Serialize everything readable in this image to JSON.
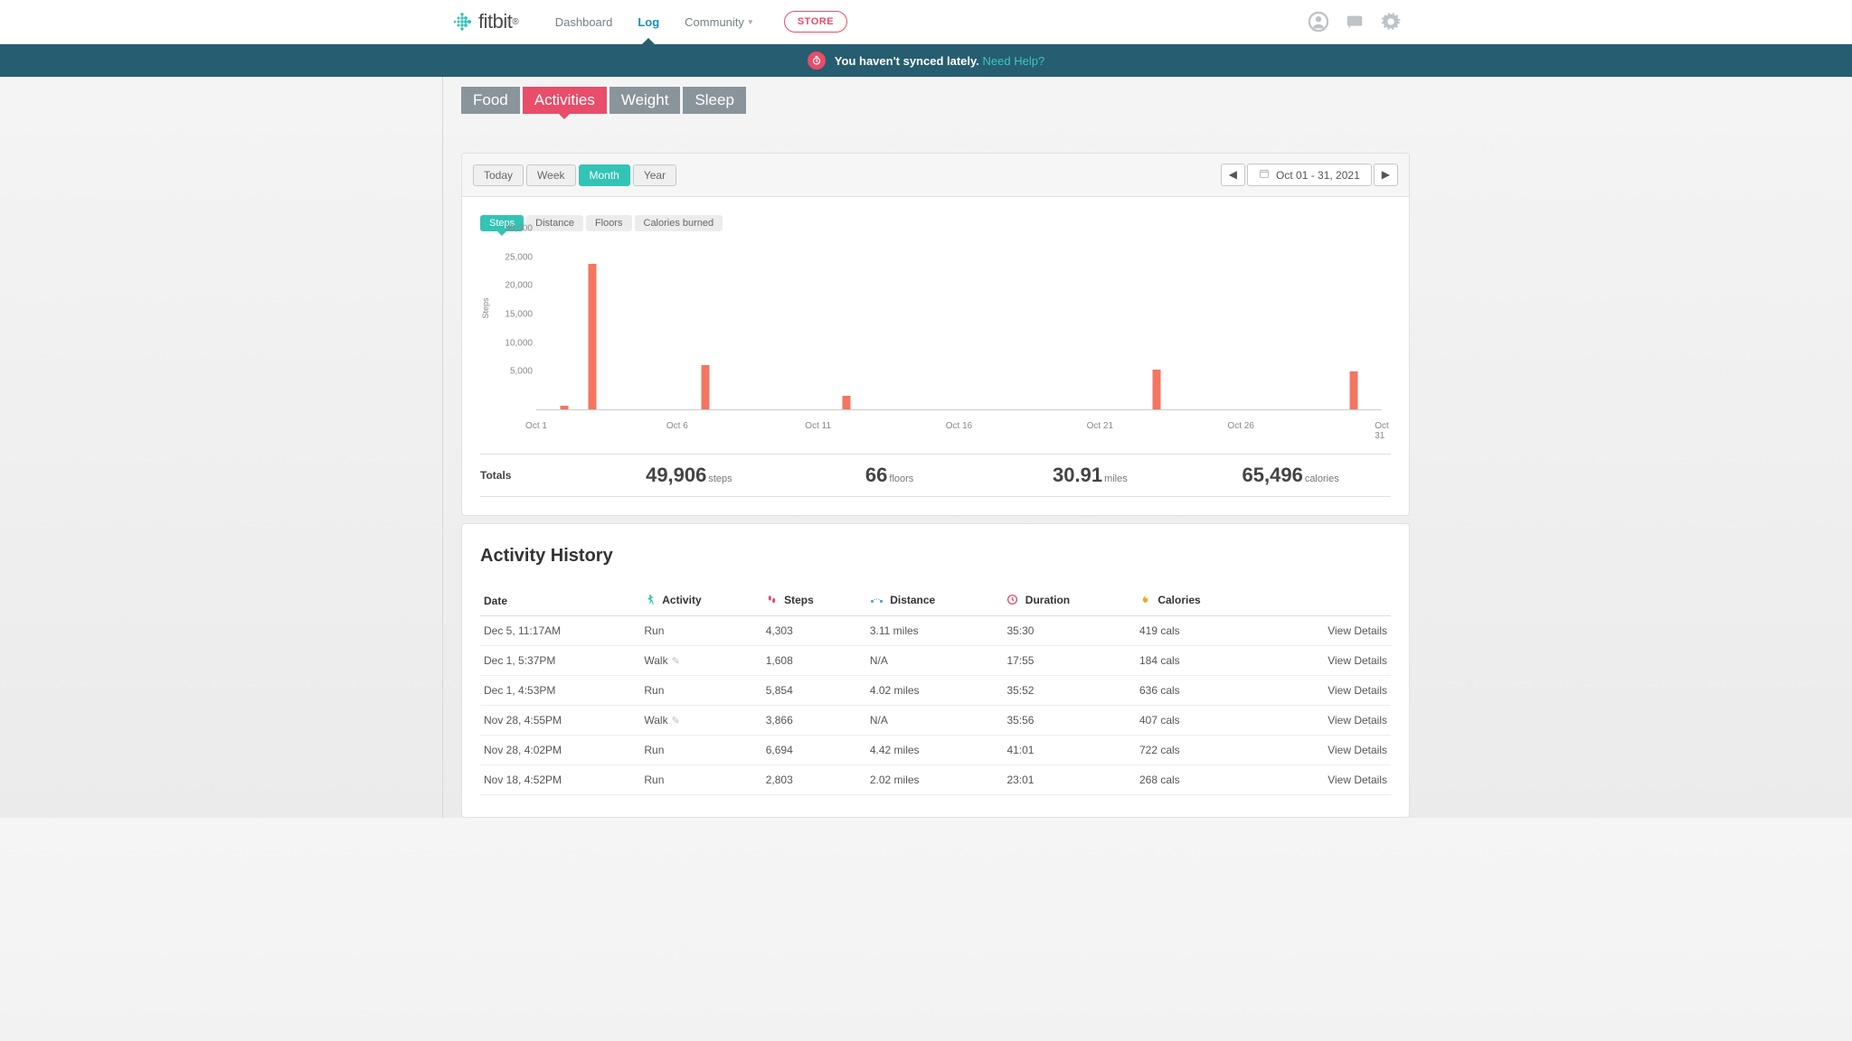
{
  "brand": "fitbit",
  "nav": {
    "dashboard": "Dashboard",
    "log": "Log",
    "community": "Community",
    "store": "STORE"
  },
  "sync": {
    "message": "You haven't synced lately.",
    "help": "Need Help?"
  },
  "subtabs": {
    "food": "Food",
    "activities": "Activities",
    "weight": "Weight",
    "sleep": "Sleep"
  },
  "range": {
    "today": "Today",
    "week": "Week",
    "month": "Month",
    "year": "Year",
    "date_display": "Oct 01 - 31, 2021"
  },
  "metrics": {
    "steps": "Steps",
    "distance": "Distance",
    "floors": "Floors",
    "calories": "Calories burned"
  },
  "chart": {
    "type": "bar",
    "y_axis_label": "Steps",
    "ylim": [
      0,
      30000
    ],
    "ytick_step": 5000,
    "y_ticks": [
      "5,000",
      "10,000",
      "15,000",
      "20,000",
      "25,000",
      "30,000"
    ],
    "bar_color": "#f47560",
    "grid_color": "#cccccc",
    "background_color": "#ffffff",
    "label_fontsize": 10,
    "label_color": "#888888",
    "x_categories": [
      "Oct 1",
      "Oct 6",
      "Oct 11",
      "Oct 16",
      "Oct 21",
      "Oct 26",
      "Oct 31"
    ],
    "bars": [
      {
        "day": 2,
        "value": 600
      },
      {
        "day": 3,
        "value": 25500
      },
      {
        "day": 7,
        "value": 7800
      },
      {
        "day": 12,
        "value": 2400
      },
      {
        "day": 23,
        "value": 6900
      },
      {
        "day": 30,
        "value": 6600
      }
    ]
  },
  "totals": {
    "label": "Totals",
    "steps_val": "49,906",
    "steps_unit": "steps",
    "floors_val": "66",
    "floors_unit": "floors",
    "distance_val": "30.91",
    "distance_unit": "miles",
    "calories_val": "65,496",
    "calories_unit": "calories"
  },
  "history": {
    "title": "Activity History",
    "columns": {
      "date": "Date",
      "activity": "Activity",
      "steps": "Steps",
      "distance": "Distance",
      "duration": "Duration",
      "calories": "Calories"
    },
    "view_label": "View Details",
    "rows": [
      {
        "date": "Dec 5, 11:17AM",
        "activity": "Run",
        "editable": false,
        "steps": "4,303",
        "distance": "3.11 miles",
        "duration": "35:30",
        "calories": "419 cals"
      },
      {
        "date": "Dec 1, 5:37PM",
        "activity": "Walk",
        "editable": true,
        "steps": "1,608",
        "distance": "N/A",
        "duration": "17:55",
        "calories": "184 cals"
      },
      {
        "date": "Dec 1, 4:53PM",
        "activity": "Run",
        "editable": false,
        "steps": "5,854",
        "distance": "4.02 miles",
        "duration": "35:52",
        "calories": "636 cals"
      },
      {
        "date": "Nov 28, 4:55PM",
        "activity": "Walk",
        "editable": true,
        "steps": "3,866",
        "distance": "N/A",
        "duration": "35:56",
        "calories": "407 cals"
      },
      {
        "date": "Nov 28, 4:02PM",
        "activity": "Run",
        "editable": false,
        "steps": "6,694",
        "distance": "4.42 miles",
        "duration": "41:01",
        "calories": "722 cals"
      },
      {
        "date": "Nov 18, 4:52PM",
        "activity": "Run",
        "editable": false,
        "steps": "2,803",
        "distance": "2.02 miles",
        "duration": "23:01",
        "calories": "268 cals"
      }
    ]
  },
  "colors": {
    "accent_pink": "#e84d6a",
    "accent_teal": "#32c4b5",
    "banner_bg": "#265d70",
    "subtab_inactive": "#8a959b",
    "icon_walk": "#32c4b5",
    "icon_steps": "#e84d6a",
    "icon_distance": "#4aa3d8",
    "icon_duration": "#e84d6a",
    "icon_calories": "#f5a623"
  }
}
